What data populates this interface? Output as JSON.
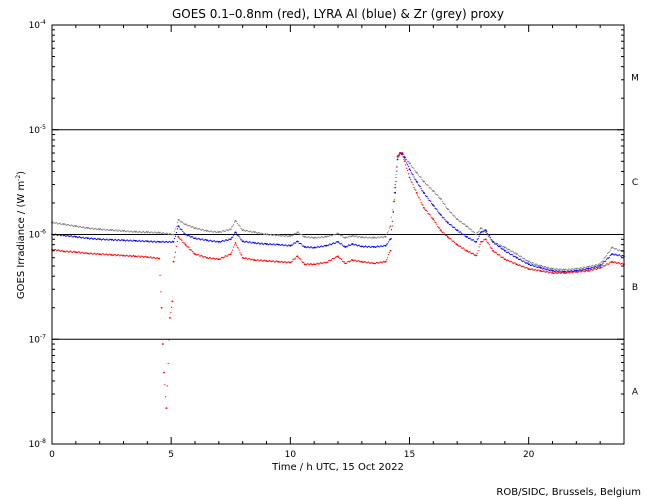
{
  "chart_data": {
    "type": "scatter",
    "title": "GOES 0.1–0.8nm (red), LYRA Al (blue) & Zr (grey) proxy",
    "xlabel": "Time / h UTC, 15 Oct 2022",
    "ylabel": "GOES Irradiance / (W m",
    "ylabel_sup": "-2",
    "ylabel_tail": ")",
    "xlim": [
      0,
      24
    ],
    "ylim": [
      1e-08,
      0.0001
    ],
    "yscale": "log",
    "x_ticks": [
      0,
      5,
      10,
      15,
      20
    ],
    "x_tick_labels": [
      "0",
      "5",
      "10",
      "15",
      "20"
    ],
    "x_minor_step": 1,
    "y_tick_labels": [
      {
        "value": 0.0001,
        "base": "10",
        "exp": "-4"
      },
      {
        "value": 1e-05,
        "base": "10",
        "exp": "-5"
      },
      {
        "value": 1e-06,
        "base": "10",
        "exp": "-6"
      },
      {
        "value": 1e-07,
        "base": "10",
        "exp": "-7"
      },
      {
        "value": 1e-08,
        "base": "10",
        "exp": "-8"
      }
    ],
    "reference_lines": [
      1e-05,
      1e-06,
      1e-07
    ],
    "flare_classes": [
      {
        "label": "M",
        "value": 3.16e-05
      },
      {
        "label": "C",
        "value": 3.16e-06
      },
      {
        "label": "B",
        "value": 3.16e-07
      },
      {
        "label": "A",
        "value": 3.16e-08
      }
    ],
    "series": [
      {
        "color": "#808080",
        "x": [
          0,
          0.5,
          1,
          1.5,
          2,
          2.5,
          3,
          3.5,
          4,
          4.5,
          5.1,
          5.3,
          5.6,
          6,
          6.5,
          7,
          7.5,
          7.7,
          8,
          8.5,
          9,
          9.5,
          10,
          10.3,
          10.6,
          11,
          11.5,
          12,
          12.3,
          12.6,
          13,
          13.5,
          14,
          14.2,
          14.4,
          14.5,
          14.6,
          14.7,
          14.8,
          15,
          15.3,
          15.6,
          16,
          16.3,
          16.6,
          17,
          17.4,
          17.8,
          18,
          18.2,
          18.5,
          19,
          19.5,
          20,
          20.5,
          21,
          21.5,
          22,
          22.5,
          23,
          23.5,
          24
        ],
        "y": [
          1.3e-06,
          1.25e-06,
          1.2e-06,
          1.15e-06,
          1.12e-06,
          1.1e-06,
          1.08e-06,
          1.06e-06,
          1.05e-06,
          1.04e-06,
          1e-06,
          1.38e-06,
          1.25e-06,
          1.15e-06,
          1.08e-06,
          1.05e-06,
          1.12e-06,
          1.35e-06,
          1.1e-06,
          1.05e-06,
          1e-06,
          9.8e-07,
          9.6e-07,
          1.05e-06,
          9.5e-07,
          9.3e-07,
          9.5e-07,
          1.02e-06,
          9.3e-07,
          9.7e-07,
          9.4e-07,
          9.3e-07,
          9.5e-07,
          1.2e-06,
          3e-06,
          5.5e-06,
          5.9e-06,
          5.9e-06,
          5.5e-06,
          4.8e-06,
          3.9e-06,
          3.2e-06,
          2.6e-06,
          2.2e-06,
          1.75e-06,
          1.4e-06,
          1.2e-06,
          1e-06,
          1.15e-06,
          1.05e-06,
          8.5e-07,
          7.5e-07,
          6.5e-07,
          5.5e-07,
          5e-07,
          4.7e-07,
          4.6e-07,
          4.7e-07,
          4.9e-07,
          5.2e-07,
          7.5e-07,
          6.8e-07
        ]
      },
      {
        "color": "#0000ff",
        "x": [
          0,
          0.5,
          1,
          1.5,
          2,
          2.5,
          3,
          3.5,
          4,
          4.5,
          5.1,
          5.3,
          5.6,
          6,
          6.5,
          7,
          7.5,
          7.7,
          8,
          8.5,
          9,
          9.5,
          10,
          10.3,
          10.6,
          11,
          11.5,
          12,
          12.3,
          12.6,
          13,
          13.5,
          14,
          14.2,
          14.4,
          14.5,
          14.6,
          14.7,
          14.8,
          15,
          15.3,
          15.6,
          16,
          16.3,
          16.6,
          17,
          17.4,
          17.8,
          18,
          18.2,
          18.5,
          19,
          19.5,
          20,
          20.5,
          21,
          21.5,
          22,
          22.5,
          23,
          23.5,
          24
        ],
        "y": [
          1e-06,
          9.8e-07,
          9.5e-07,
          9.2e-07,
          9e-07,
          8.9e-07,
          8.8e-07,
          8.7e-07,
          8.6e-07,
          8.5e-07,
          8.5e-07,
          1.2e-06,
          1e-06,
          9.2e-07,
          8.8e-07,
          8.5e-07,
          9e-07,
          1.05e-06,
          8.6e-07,
          8.3e-07,
          8.1e-07,
          8e-07,
          7.8e-07,
          8.6e-07,
          7.6e-07,
          7.5e-07,
          7.8e-07,
          8.5e-07,
          7.6e-07,
          8.1e-07,
          7.7e-07,
          7.6e-07,
          7.8e-07,
          9e-07,
          2.5e-06,
          5.2e-06,
          6e-06,
          6e-06,
          5.4e-06,
          4.2e-06,
          3.2e-06,
          2.5e-06,
          1.9e-06,
          1.55e-06,
          1.3e-06,
          1.1e-06,
          9.5e-07,
          8.5e-07,
          1.05e-06,
          1.1e-06,
          8.5e-07,
          7e-07,
          6e-07,
          5.2e-07,
          4.8e-07,
          4.5e-07,
          4.4e-07,
          4.5e-07,
          4.7e-07,
          5e-07,
          6.5e-07,
          6.2e-07
        ]
      },
      {
        "color": "#ff0000",
        "x": [
          0,
          0.5,
          1,
          1.5,
          2,
          2.5,
          3,
          3.5,
          4,
          4.5,
          4.6,
          4.65,
          4.7,
          4.8,
          4.95,
          5.05,
          5.1,
          5.3,
          5.6,
          6,
          6.5,
          7,
          7.5,
          7.7,
          8,
          8.5,
          9,
          9.5,
          10,
          10.3,
          10.6,
          11,
          11.5,
          12,
          12.3,
          12.6,
          13,
          13.5,
          14,
          14.2,
          14.4,
          14.5,
          14.6,
          14.7,
          14.8,
          15,
          15.3,
          15.6,
          16,
          16.3,
          16.6,
          17,
          17.4,
          17.8,
          18,
          18.2,
          18.5,
          19,
          19.5,
          20,
          20.5,
          21,
          21.5,
          22,
          22.5,
          23,
          23.5,
          24
        ],
        "y": [
          7.2e-07,
          6.9e-07,
          6.8e-07,
          6.6e-07,
          6.5e-07,
          6.4e-07,
          6.3e-07,
          6.2e-07,
          6.1e-07,
          5.9e-07,
          2e-07,
          9e-08,
          4.8e-08,
          2.2e-08,
          1.6e-07,
          2.3e-07,
          5.5e-07,
          9.5e-07,
          8e-07,
          6.5e-07,
          6e-07,
          5.8e-07,
          6.5e-07,
          8.3e-07,
          6e-07,
          5.7e-07,
          5.6e-07,
          5.5e-07,
          5.4e-07,
          6.2e-07,
          5.2e-07,
          5.2e-07,
          5.4e-07,
          6.2e-07,
          5.3e-07,
          5.7e-07,
          5.5e-07,
          5.3e-07,
          5.5e-07,
          7e-07,
          2.8e-06,
          5.6e-06,
          6e-06,
          5.8e-06,
          5e-06,
          3.5e-06,
          2.5e-06,
          1.8e-06,
          1.4e-06,
          1.1e-06,
          9.5e-07,
          8e-07,
          7e-07,
          6.3e-07,
          8.5e-07,
          9e-07,
          7e-07,
          5.8e-07,
          5.2e-07,
          4.7e-07,
          4.5e-07,
          4.3e-07,
          4.3e-07,
          4.4e-07,
          4.5e-07,
          4.8e-07,
          5.5e-07,
          5.2e-07
        ]
      }
    ],
    "footer": "ROB/SIDC, Brussels, Belgium"
  }
}
